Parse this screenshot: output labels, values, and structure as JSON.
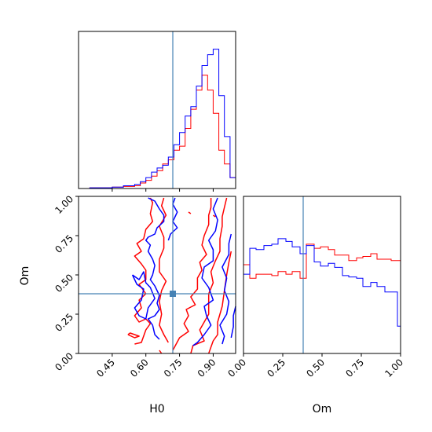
{
  "chart_data": {
    "type": "corner",
    "parameters": [
      "H0",
      "Om"
    ],
    "truth": {
      "H0": 0.72,
      "Om": 0.38
    },
    "truth_color": "#4682b4",
    "series": [
      {
        "color": "#0000ff"
      },
      {
        "color": "#ff0000"
      }
    ],
    "panels": {
      "h0_hist": {
        "xlim": [
          0.3,
          1.0
        ],
        "bins": [
          0.3,
          0.35,
          0.4,
          0.45,
          0.5,
          0.55,
          0.575,
          0.6,
          0.625,
          0.65,
          0.675,
          0.7,
          0.725,
          0.75,
          0.775,
          0.8,
          0.825,
          0.85,
          0.875,
          0.9,
          0.925,
          0.95,
          0.975,
          1.0
        ],
        "blue": [
          0,
          0.5,
          0.5,
          1,
          2,
          3,
          5,
          8,
          12,
          15,
          17,
          23,
          32,
          41,
          53,
          60,
          75,
          90,
          98,
          102,
          68,
          38,
          8
        ],
        "red": [
          0,
          0.5,
          0.5,
          1,
          1.5,
          2,
          4,
          6,
          9,
          13,
          18,
          21,
          28,
          31,
          44,
          58,
          72,
          83,
          72,
          55,
          28,
          18,
          8
        ]
      },
      "om_hist": {
        "xlim": [
          0.0,
          1.0
        ],
        "bins": [
          0.0,
          0.04,
          0.08,
          0.13,
          0.18,
          0.22,
          0.27,
          0.31,
          0.36,
          0.4,
          0.45,
          0.49,
          0.54,
          0.58,
          0.63,
          0.67,
          0.72,
          0.76,
          0.81,
          0.85,
          0.9,
          0.94,
          0.98,
          1.0
        ],
        "blue": [
          58,
          77,
          76,
          79,
          80,
          84,
          82,
          78,
          73,
          79,
          67,
          64,
          66,
          63,
          57,
          56,
          55,
          49,
          52,
          49,
          45,
          45,
          20
        ],
        "red": [
          65,
          55,
          58,
          58,
          57,
          60,
          58,
          60,
          55,
          80,
          77,
          78,
          76,
          72,
          72,
          68,
          70,
          71,
          73,
          69,
          69,
          68,
          68
        ]
      },
      "joint": {
        "xlim": [
          0.3,
          1.0
        ],
        "ylim": [
          0.0,
          1.0
        ],
        "blue_contours": [
          [
            [
              0.54,
              0.5
            ],
            [
              0.57,
              0.47
            ],
            [
              0.59,
              0.52
            ],
            [
              0.6,
              0.45
            ],
            [
              0.62,
              0.42
            ],
            [
              0.64,
              0.35
            ],
            [
              0.61,
              0.29
            ],
            [
              0.6,
              0.22
            ],
            [
              0.57,
              0.24
            ],
            [
              0.55,
              0.29
            ],
            [
              0.58,
              0.34
            ],
            [
              0.59,
              0.41
            ],
            [
              0.56,
              0.44
            ],
            [
              0.54,
              0.5
            ]
          ],
          [
            [
              0.61,
              0.99
            ],
            [
              0.64,
              0.97
            ],
            [
              0.66,
              0.92
            ],
            [
              0.68,
              0.88
            ],
            [
              0.68,
              0.84
            ],
            [
              0.65,
              0.8
            ],
            [
              0.64,
              0.76
            ],
            [
              0.61,
              0.74
            ],
            [
              0.6,
              0.72
            ],
            [
              0.62,
              0.69
            ],
            [
              0.61,
              0.65
            ],
            [
              0.63,
              0.6
            ],
            [
              0.64,
              0.56
            ],
            [
              0.63,
              0.5
            ],
            [
              0.62,
              0.47
            ],
            [
              0.64,
              0.43
            ],
            [
              0.66,
              0.37
            ],
            [
              0.65,
              0.32
            ],
            [
              0.66,
              0.28
            ],
            [
              0.64,
              0.24
            ],
            [
              0.61,
              0.22
            ],
            [
              0.63,
              0.18
            ],
            [
              0.64,
              0.12
            ],
            [
              0.66,
              0.09
            ]
          ],
          [
            [
              0.73,
              0.99
            ],
            [
              0.72,
              0.95
            ],
            [
              0.74,
              0.9
            ],
            [
              0.72,
              0.84
            ],
            [
              0.74,
              0.8
            ],
            [
              0.71,
              0.76
            ],
            [
              0.7,
              0.72
            ]
          ],
          [
            [
              0.81,
              0.05
            ],
            [
              0.83,
              0.07
            ],
            [
              0.86,
              0.12
            ],
            [
              0.89,
              0.18
            ],
            [
              0.87,
              0.24
            ],
            [
              0.86,
              0.3
            ],
            [
              0.9,
              0.34
            ],
            [
              0.88,
              0.42
            ],
            [
              0.85,
              0.48
            ],
            [
              0.86,
              0.55
            ],
            [
              0.9,
              0.59
            ],
            [
              0.9,
              0.66
            ],
            [
              0.88,
              0.72
            ],
            [
              0.91,
              0.78
            ],
            [
              0.92,
              0.85
            ],
            [
              0.9,
              0.92
            ],
            [
              0.92,
              0.99
            ]
          ],
          [
            [
              0.94,
              0.06
            ],
            [
              0.95,
              0.11
            ],
            [
              0.93,
              0.18
            ],
            [
              0.96,
              0.25
            ],
            [
              0.97,
              0.33
            ],
            [
              0.95,
              0.4
            ],
            [
              0.96,
              0.48
            ],
            [
              0.94,
              0.55
            ],
            [
              0.97,
              0.63
            ],
            [
              0.97,
              0.7
            ],
            [
              0.98,
              0.76
            ]
          ],
          [
            [
              0.98,
              0.1
            ],
            [
              0.99,
              0.17
            ],
            [
              0.99,
              0.24
            ],
            [
              1.0,
              0.3
            ]
          ]
        ],
        "red_contours": [
          [
            [
              0.55,
              0.06
            ],
            [
              0.58,
              0.07
            ],
            [
              0.6,
              0.15
            ],
            [
              0.62,
              0.19
            ],
            [
              0.6,
              0.22
            ],
            [
              0.57,
              0.2
            ],
            [
              0.55,
              0.24
            ],
            [
              0.58,
              0.29
            ],
            [
              0.57,
              0.34
            ],
            [
              0.6,
              0.38
            ],
            [
              0.57,
              0.44
            ],
            [
              0.6,
              0.47
            ],
            [
              0.6,
              0.53
            ],
            [
              0.58,
              0.57
            ],
            [
              0.55,
              0.62
            ],
            [
              0.58,
              0.65
            ],
            [
              0.56,
              0.7
            ],
            [
              0.59,
              0.73
            ],
            [
              0.6,
              0.79
            ],
            [
              0.63,
              0.84
            ],
            [
              0.62,
              0.89
            ],
            [
              0.63,
              0.96
            ],
            [
              0.62,
              0.99
            ]
          ],
          [
            [
              0.52,
              0.12
            ],
            [
              0.55,
              0.1
            ],
            [
              0.57,
              0.11
            ],
            [
              0.53,
              0.13
            ],
            [
              0.52,
              0.12
            ]
          ],
          [
            [
              0.68,
              0.99
            ],
            [
              0.67,
              0.94
            ],
            [
              0.69,
              0.88
            ],
            [
              0.66,
              0.81
            ],
            [
              0.68,
              0.74
            ],
            [
              0.68,
              0.67
            ],
            [
              0.66,
              0.6
            ],
            [
              0.66,
              0.52
            ],
            [
              0.69,
              0.46
            ],
            [
              0.67,
              0.4
            ],
            [
              0.66,
              0.33
            ],
            [
              0.67,
              0.25
            ],
            [
              0.66,
              0.18
            ],
            [
              0.68,
              0.12
            ],
            [
              0.7,
              0.07
            ]
          ],
          [
            [
              0.72,
              0.02
            ],
            [
              0.75,
              0.1
            ],
            [
              0.79,
              0.14
            ],
            [
              0.77,
              0.19
            ],
            [
              0.79,
              0.24
            ],
            [
              0.78,
              0.28
            ],
            [
              0.82,
              0.31
            ],
            [
              0.8,
              0.36
            ],
            [
              0.83,
              0.41
            ],
            [
              0.83,
              0.48
            ],
            [
              0.85,
              0.53
            ],
            [
              0.84,
              0.58
            ],
            [
              0.87,
              0.63
            ],
            [
              0.85,
              0.69
            ],
            [
              0.86,
              0.75
            ],
            [
              0.88,
              0.82
            ],
            [
              0.88,
              0.88
            ],
            [
              0.89,
              0.93
            ],
            [
              0.89,
              0.99
            ]
          ],
          [
            [
              0.8,
              0.0
            ],
            [
              0.81,
              0.05
            ],
            [
              0.86,
              0.08
            ],
            [
              0.84,
              0.15
            ],
            [
              0.86,
              0.2
            ],
            [
              0.88,
              0.25
            ],
            [
              0.88,
              0.3
            ],
            [
              0.88,
              0.38
            ],
            [
              0.9,
              0.45
            ],
            [
              0.89,
              0.52
            ],
            [
              0.91,
              0.59
            ],
            [
              0.93,
              0.65
            ],
            [
              0.93,
              0.73
            ],
            [
              0.94,
              0.81
            ],
            [
              0.94,
              0.87
            ],
            [
              0.95,
              0.93
            ],
            [
              0.96,
              0.99
            ]
          ],
          [
            [
              0.88,
              0.0
            ],
            [
              0.9,
              0.08
            ],
            [
              0.92,
              0.12
            ],
            [
              0.92,
              0.2
            ],
            [
              0.94,
              0.3
            ],
            [
              0.95,
              0.4
            ],
            [
              0.96,
              0.5
            ],
            [
              0.97,
              0.58
            ],
            [
              0.98,
              0.65
            ]
          ],
          [
            [
              0.79,
              0.9
            ],
            [
              0.8,
              0.89
            ]
          ],
          [
            [
              0.66,
              0.02
            ],
            [
              0.67,
              0.0
            ]
          ],
          [
            [
              0.9,
              0.88
            ],
            [
              0.91,
              0.87
            ]
          ]
        ]
      }
    },
    "ticks": {
      "h0": [
        "0.45",
        "0.60",
        "0.75",
        "0.90"
      ],
      "h0_values": [
        0.45,
        0.6,
        0.75,
        0.9
      ],
      "om": [
        "0.00",
        "0.25",
        "0.50",
        "0.75",
        "1.00"
      ],
      "om_values": [
        0.0,
        0.25,
        0.5,
        0.75,
        1.0
      ]
    },
    "xlabel_h0": "H0",
    "xlabel_om": "Om",
    "ylabel_om": "Om"
  }
}
